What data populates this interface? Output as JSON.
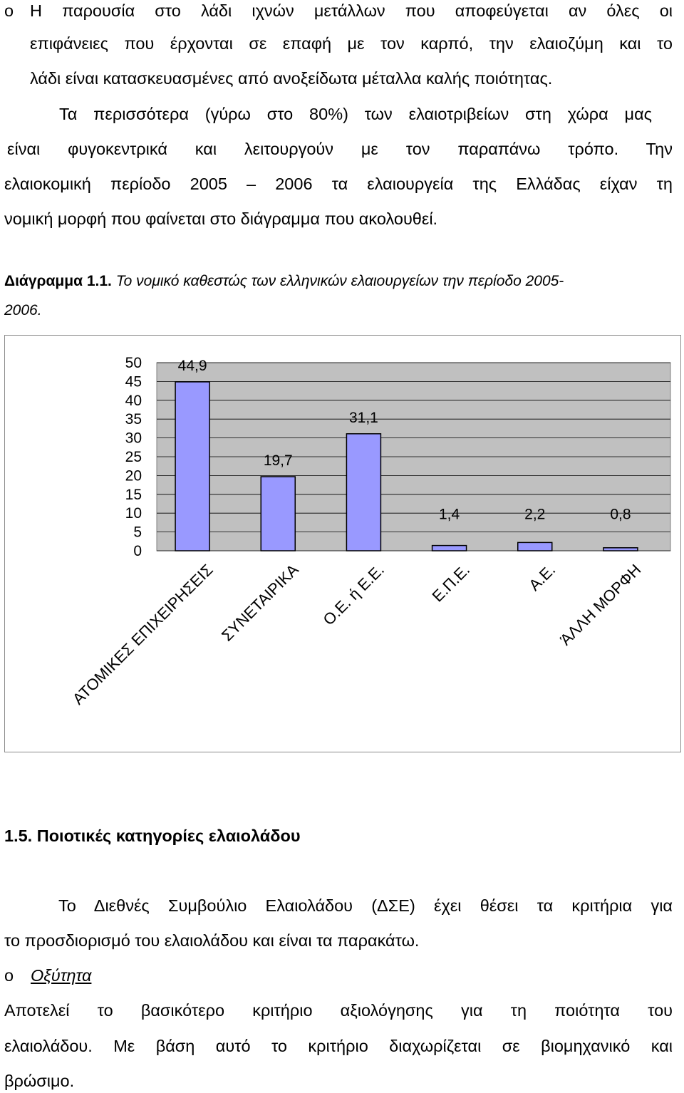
{
  "paragraph1": {
    "bullet": "o",
    "lines": [
      "Η παρουσία στο λάδι ιχνών μετάλλων που αποφεύγεται αν όλες οι",
      "επιφάνειες που έρχονται σε επαφή με τον καρπό, την ελαιοζύμη και το",
      "λάδι είναι κατασκευασμένες από ανοξείδωτα μέταλλα καλής ποιότητας."
    ]
  },
  "paragraph2": {
    "lines": [
      "Τα περισσότερα (γύρω στο 80%) των ελαιοτριβείων στη χώρα μας",
      "είναι φυγοκεντρικά και λειτουργούν με τον παραπάνω τρόπο. Την",
      "ελαιοκομική περίοδο 2005 – 2006 τα ελαιουργεία της Ελλάδας είχαν τη",
      "νομική μορφή που φαίνεται στο διάγραμμα που ακολουθεί."
    ]
  },
  "caption": {
    "label": "Διάγραμμα 1.1.",
    "text_line1": "Το νομικό καθεστώς των ελληνικών ελαιουργείων την περίοδο 2005-",
    "text_line2": "2006."
  },
  "chart_data": {
    "type": "bar",
    "categories": [
      "ΑΤΟΜΙΚΕΣ ΕΠΙΧΕΙΡΗΣΕΙΣ",
      "ΣΥΝΕΤΑΙΡΙΚΑ",
      "Ο.Ε. ή Ε.Ε.",
      "Ε.Π.Ε.",
      "Α.Ε.",
      "ΆΛΛΗ ΜΟΡΦΗ"
    ],
    "values": [
      44.9,
      19.7,
      31.1,
      1.4,
      2.2,
      0.8
    ],
    "data_labels": [
      "44,9",
      "19,7",
      "31,1",
      "1,4",
      "2,2",
      "0,8"
    ],
    "yticks": [
      "0",
      "5",
      "10",
      "15",
      "20",
      "25",
      "30",
      "35",
      "40",
      "45",
      "50"
    ],
    "ylim": [
      0,
      50
    ],
    "grid": true,
    "legend": "none",
    "colors": {
      "bar": "#9999ff",
      "plot_bg": "#c0c0c0",
      "gridline": "#000000"
    }
  },
  "section": {
    "heading": "1.5. Ποιοτικές κατηγορίες ελαιολάδου",
    "para_lines": [
      "Το Διεθνές Συμβούλιο Ελαιολάδου (ΔΣΕ) έχει θέσει τα κριτήρια για",
      "το προσδιορισμό του ελαιολάδου και είναι τα παρακάτω."
    ],
    "bullet": "o",
    "subheading": "Οξύτητα",
    "sub_lines": [
      "Αποτελεί το βασικότερο κριτήριο αξιολόγησης για τη ποιότητα του",
      "ελαιολάδου. Με βάση αυτό το κριτήριο διαχωρίζεται σε βιομηχανικό και",
      "βρώσιμο."
    ]
  }
}
